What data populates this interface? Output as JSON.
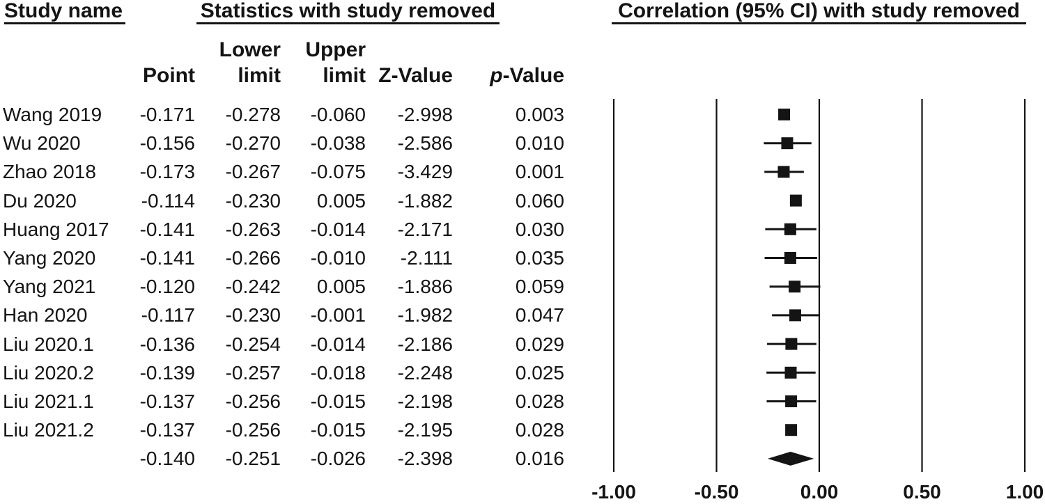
{
  "figure": {
    "left_header": "Study name",
    "stats_header": "Statistics with study removed",
    "plot_header": "Correlation (95% CI) with study removed"
  },
  "table": {
    "header1": {
      "lower": "Lower",
      "upper": "Upper"
    },
    "header2": {
      "point": "Point",
      "lower": "limit",
      "upper": "limit",
      "z": "Z-Value",
      "p_italic": "p",
      "p_rest": "-Value"
    },
    "columns": [
      "Study name",
      "Point",
      "Lower limit",
      "Upper limit",
      "Z-Value",
      "p-Value"
    ]
  },
  "chart_data": {
    "type": "forest",
    "title": "Correlation (95% CI) with study removed",
    "xlabel": "Correlation",
    "xlim": [
      -1,
      1
    ],
    "grid": "vertical-lines-at-ticks",
    "marker": "square",
    "summary_marker": "diamond",
    "x_ticks": [
      {
        "value": -1.0,
        "label": "-1.00"
      },
      {
        "value": -0.5,
        "label": "-0.50"
      },
      {
        "value": 0.0,
        "label": "0.00"
      },
      {
        "value": 0.5,
        "label": "0.50"
      },
      {
        "value": 1.0,
        "label": "1.00"
      }
    ],
    "studies": [
      {
        "label": "Wang 2019",
        "point": -0.171,
        "lower": -0.278,
        "upper": -0.06,
        "z": -2.998,
        "p": 0.003,
        "ci_whisker_visible": false
      },
      {
        "label": "Wu 2020",
        "point": -0.156,
        "lower": -0.27,
        "upper": -0.038,
        "z": -2.586,
        "p": 0.01,
        "ci_whisker_visible": true
      },
      {
        "label": "Zhao 2018",
        "point": -0.173,
        "lower": -0.267,
        "upper": -0.075,
        "z": -3.429,
        "p": 0.001,
        "ci_whisker_visible": true
      },
      {
        "label": "Du 2020",
        "point": -0.114,
        "lower": -0.23,
        "upper": 0.005,
        "z": -1.882,
        "p": 0.06,
        "ci_whisker_visible": false
      },
      {
        "label": "Huang 2017",
        "point": -0.141,
        "lower": -0.263,
        "upper": -0.014,
        "z": -2.171,
        "p": 0.03,
        "ci_whisker_visible": true
      },
      {
        "label": "Yang 2020",
        "point": -0.141,
        "lower": -0.266,
        "upper": -0.01,
        "z": -2.111,
        "p": 0.035,
        "ci_whisker_visible": true
      },
      {
        "label": "Yang 2021",
        "point": -0.12,
        "lower": -0.242,
        "upper": 0.005,
        "z": -1.886,
        "p": 0.059,
        "ci_whisker_visible": true
      },
      {
        "label": "Han 2020",
        "point": -0.117,
        "lower": -0.23,
        "upper": -0.001,
        "z": -1.982,
        "p": 0.047,
        "ci_whisker_visible": true
      },
      {
        "label": "Liu 2020.1",
        "point": -0.136,
        "lower": -0.254,
        "upper": -0.014,
        "z": -2.186,
        "p": 0.029,
        "ci_whisker_visible": true
      },
      {
        "label": "Liu 2020.2",
        "point": -0.139,
        "lower": -0.257,
        "upper": -0.018,
        "z": -2.248,
        "p": 0.025,
        "ci_whisker_visible": true
      },
      {
        "label": "Liu 2021.1",
        "point": -0.137,
        "lower": -0.256,
        "upper": -0.015,
        "z": -2.198,
        "p": 0.028,
        "ci_whisker_visible": true
      },
      {
        "label": "Liu 2021.2",
        "point": -0.137,
        "lower": -0.256,
        "upper": -0.015,
        "z": -2.195,
        "p": 0.028,
        "ci_whisker_visible": false
      }
    ],
    "summary": {
      "label": "",
      "point": -0.14,
      "lower": -0.251,
      "upper": -0.026,
      "z": -2.398,
      "p": 0.016
    }
  }
}
